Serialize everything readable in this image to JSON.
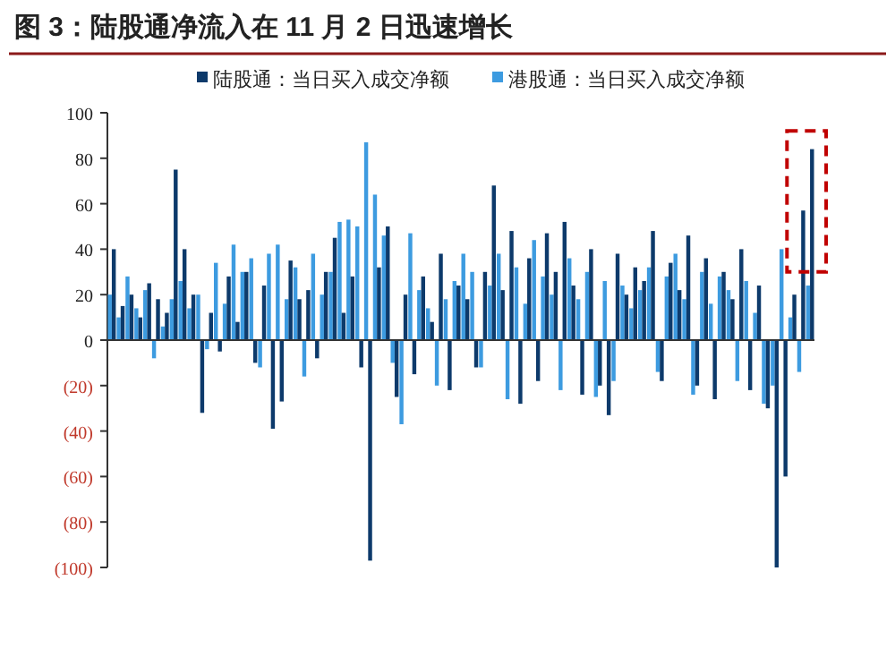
{
  "chart_data": {
    "type": "bar",
    "title": "图 3：陆股通净流入在 11 月 2 日迅速增长",
    "categories": [
      null,
      null,
      null,
      null,
      null,
      null,
      null,
      null,
      null,
      null,
      null,
      null,
      null,
      null,
      null,
      null,
      null,
      null,
      null,
      null,
      null,
      null,
      null,
      null,
      null,
      null,
      null,
      null,
      null,
      null,
      null,
      null,
      null,
      null,
      null,
      null,
      null,
      null,
      null,
      null,
      null,
      null,
      null,
      null,
      null,
      null,
      null,
      null,
      null,
      null,
      null,
      null,
      null,
      null,
      null,
      null,
      null,
      null,
      null,
      null,
      null,
      null,
      null,
      null,
      null,
      null,
      null,
      null,
      null,
      null,
      null,
      null,
      null,
      null,
      null,
      null,
      null,
      null,
      null,
      null
    ],
    "series": [
      {
        "name": "港股通：当日买入成交净额",
        "color": "#3d9be0",
        "values": [
          20,
          10,
          28,
          14,
          22,
          -8,
          6,
          18,
          26,
          14,
          20,
          -4,
          34,
          16,
          42,
          30,
          36,
          -12,
          38,
          42,
          18,
          32,
          -16,
          38,
          20,
          30,
          52,
          53,
          50,
          87,
          64,
          46,
          -10,
          -37,
          47,
          22,
          14,
          -20,
          18,
          26,
          38,
          30,
          -12,
          24,
          38,
          -26,
          32,
          16,
          44,
          28,
          20,
          -22,
          36,
          18,
          30,
          -25,
          26,
          -18,
          24,
          14,
          22,
          32,
          -14,
          28,
          38,
          18,
          -24,
          30,
          16,
          28,
          22,
          -18,
          26,
          12,
          -28,
          -20,
          40,
          10,
          -14,
          24
        ]
      },
      {
        "name": "陆股通：当日买入成交净额",
        "color": "#0d3a6b",
        "values": [
          40,
          15,
          20,
          10,
          25,
          18,
          12,
          75,
          40,
          20,
          -32,
          12,
          -5,
          28,
          8,
          30,
          -10,
          24,
          -39,
          -27,
          35,
          18,
          22,
          -8,
          30,
          45,
          12,
          28,
          -12,
          -97,
          32,
          50,
          -25,
          20,
          -15,
          28,
          8,
          38,
          -22,
          24,
          18,
          -12,
          30,
          68,
          22,
          48,
          -28,
          36,
          -18,
          47,
          30,
          52,
          24,
          -24,
          40,
          -20,
          -33,
          38,
          20,
          32,
          26,
          48,
          -18,
          34,
          22,
          46,
          -20,
          36,
          -26,
          30,
          18,
          40,
          -22,
          24,
          -30,
          -100,
          -60,
          20,
          57,
          84
        ]
      }
    ],
    "ylim": [
      -100,
      100
    ],
    "yticks": [
      {
        "value": -100,
        "label": "(100)"
      },
      {
        "value": -80,
        "label": "(80)"
      },
      {
        "value": -60,
        "label": "(60)"
      },
      {
        "value": -40,
        "label": "(40)"
      },
      {
        "value": -20,
        "label": "(20)"
      },
      0,
      20,
      40,
      60,
      80,
      100
    ],
    "tick_labels": "y",
    "legend": "top"
  }
}
